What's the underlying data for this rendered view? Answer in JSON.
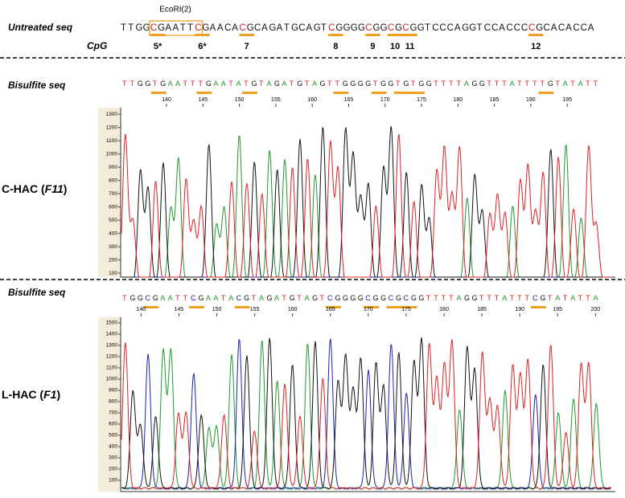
{
  "untreated": {
    "label": "Untreated seq",
    "sequence": "TTGGCGAATTCGAACACGCAGATGCAGTCGGGGCGGCGCGGTCCCAGGTCCACCCCGCACACCA",
    "ecori_label": "EcoRI(2)",
    "cpg_label": "CpG",
    "cpg_sites": [
      "5*",
      "6*",
      "7",
      "8",
      "9",
      "10",
      "11",
      "12"
    ]
  },
  "panels": [
    {
      "bisulfite_label": "Bisulfite seq",
      "sequence": "TTGGTGAATTTGAATATGTAGATGTAGTTGGGGTGGTGTGGTTTTAGGTTTATTTTGTATATT",
      "sample_prefix": "C-HAC (",
      "sample_clone": "F11",
      "sample_suffix": ")",
      "xlim": [
        133.7,
        199.4
      ],
      "xticks": [
        140,
        145,
        150,
        155,
        160,
        165,
        170,
        175,
        180,
        185,
        190,
        195
      ],
      "ylim": [
        70,
        1350
      ],
      "yticks": [
        100,
        200,
        300,
        400,
        500,
        600,
        700,
        800,
        900,
        1000,
        1100,
        1200,
        1300
      ]
    },
    {
      "bisulfite_label": "Bisulfite seq",
      "sequence": "TGGCGAATTCGAATACGTAGATGTAGTCGGGGCGGCGCGGTTTTAGGTTTATTTCGTATATTA",
      "sample_prefix": "L-HAC (",
      "sample_clone": "F1",
      "sample_suffix": ")",
      "xlim": [
        137.3,
        200.5
      ],
      "xticks": [
        140,
        145,
        150,
        155,
        160,
        165,
        170,
        175,
        180,
        185,
        190,
        195,
        200
      ],
      "ylim": [
        0,
        1550
      ],
      "yticks": [
        100,
        200,
        300,
        400,
        500,
        600,
        700,
        800,
        900,
        1000,
        1100,
        1200,
        1300,
        1400,
        1500
      ]
    }
  ]
}
